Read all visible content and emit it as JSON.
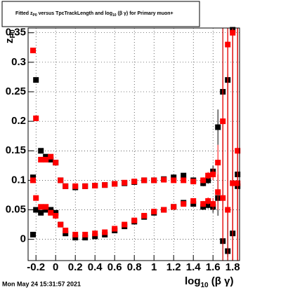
{
  "chart_data": {
    "type": "scatter",
    "title_parts": [
      "Fitted  z",
      "P0",
      "  versus TpcTrackLength and log",
      "10",
      " (β γ) for Primary muon+"
    ],
    "ylabel_parts": [
      "z",
      "P0"
    ],
    "xlabel_parts": [
      "log",
      "10",
      " (β γ)"
    ],
    "footer": "Mon May 24 15:31:57 2021",
    "x": [
      -0.23,
      -0.2,
      -0.15,
      -0.1,
      -0.05,
      0,
      0.05,
      0.1,
      0.2,
      0.3,
      0.4,
      0.5,
      0.6,
      0.7,
      0.8,
      0.9,
      1.0,
      1.1,
      1.2,
      1.3,
      1.4,
      1.5,
      1.55,
      1.6,
      1.65,
      1.7,
      1.75,
      1.8,
      1.85
    ],
    "series": [
      {
        "color": "#000000",
        "values": [
          0.105,
          0.27,
          0.15,
          0.14,
          0.135,
          0.13,
          0.1,
          0.09,
          0.088,
          0.09,
          0.091,
          0.092,
          0.094,
          0.095,
          0.097,
          0.1,
          0.1,
          0.102,
          0.105,
          0.108,
          0.1,
          0.095,
          0.1,
          0.115,
          0.19,
          0.25,
          0.27,
          0.355,
          0.09
        ],
        "errors": [
          0.002,
          0.003,
          0.002,
          0.002,
          0.002,
          0.002,
          0.002,
          0.001,
          0.001,
          0.001,
          0.001,
          0.001,
          0.001,
          0.001,
          0.001,
          0.001,
          0.001,
          0.001,
          0.002,
          0.002,
          0.003,
          0.005,
          0.006,
          0.01,
          0.03,
          0.2,
          0.3,
          0.4,
          0.4
        ]
      },
      {
        "color": "#000000",
        "values": [
          0.008,
          0.05,
          0.045,
          0.05,
          0.05,
          0.045,
          0.025,
          0.01,
          0.003,
          0.003,
          0.005,
          0.008,
          0.015,
          0.022,
          0.03,
          0.038,
          0.045,
          0.05,
          0.055,
          0.062,
          0.06,
          0.055,
          0.058,
          0.055,
          0.07,
          -0.003,
          -0.02,
          0.01,
          0.11
        ],
        "errors": [
          0.002,
          0.003,
          0.002,
          0.002,
          0.002,
          0.002,
          0.002,
          0.001,
          0.001,
          0.001,
          0.001,
          0.001,
          0.001,
          0.001,
          0.001,
          0.001,
          0.001,
          0.001,
          0.002,
          0.002,
          0.003,
          0.005,
          0.006,
          0.01,
          0.03,
          0.2,
          0.3,
          0.4,
          0.4
        ]
      },
      {
        "color": "#ff0000",
        "values": [
          0.32,
          0.205,
          0.135,
          0.135,
          0.14,
          0.13,
          0.1,
          0.09,
          0.09,
          0.09,
          0.091,
          0.092,
          0.094,
          0.096,
          0.098,
          0.1,
          0.1,
          0.101,
          0.1,
          0.1,
          0.098,
          0.1,
          0.108,
          0.11,
          0.13,
          0.2,
          0.33,
          0.35,
          0.15
        ],
        "errors": [
          0.003,
          0.003,
          0.002,
          0.002,
          0.002,
          0.002,
          0.002,
          0.001,
          0.001,
          0.001,
          0.001,
          0.001,
          0.001,
          0.001,
          0.001,
          0.001,
          0.001,
          0.001,
          0.002,
          0.002,
          0.003,
          0.005,
          0.006,
          0.01,
          0.03,
          0.2,
          0.3,
          0.4,
          0.4
        ]
      },
      {
        "color": "#ff0000",
        "values": [
          0.1,
          0.07,
          0.055,
          0.055,
          0.045,
          0.04,
          0.025,
          0.015,
          0.008,
          0.008,
          0.01,
          0.012,
          0.018,
          0.025,
          0.032,
          0.04,
          0.047,
          0.05,
          0.055,
          0.06,
          0.065,
          0.06,
          0.065,
          0.06,
          0.08,
          0.07,
          0.05,
          0.095,
          0.095
        ],
        "errors": [
          0.003,
          0.003,
          0.002,
          0.002,
          0.002,
          0.002,
          0.002,
          0.001,
          0.001,
          0.001,
          0.001,
          0.001,
          0.001,
          0.001,
          0.001,
          0.001,
          0.001,
          0.001,
          0.002,
          0.002,
          0.003,
          0.005,
          0.006,
          0.01,
          0.03,
          0.2,
          0.3,
          0.4,
          0.4
        ]
      }
    ],
    "xlim": [
      -0.28,
      1.87
    ],
    "ylim": [
      -0.036,
      0.358
    ],
    "xticks": [
      -0.2,
      0,
      0.2,
      0.4,
      0.6,
      0.8,
      1,
      1.2,
      1.4,
      1.6,
      1.8
    ],
    "yticks": [
      0,
      0.05,
      0.1,
      0.15,
      0.2,
      0.25,
      0.3,
      0.35
    ],
    "grid": true
  }
}
